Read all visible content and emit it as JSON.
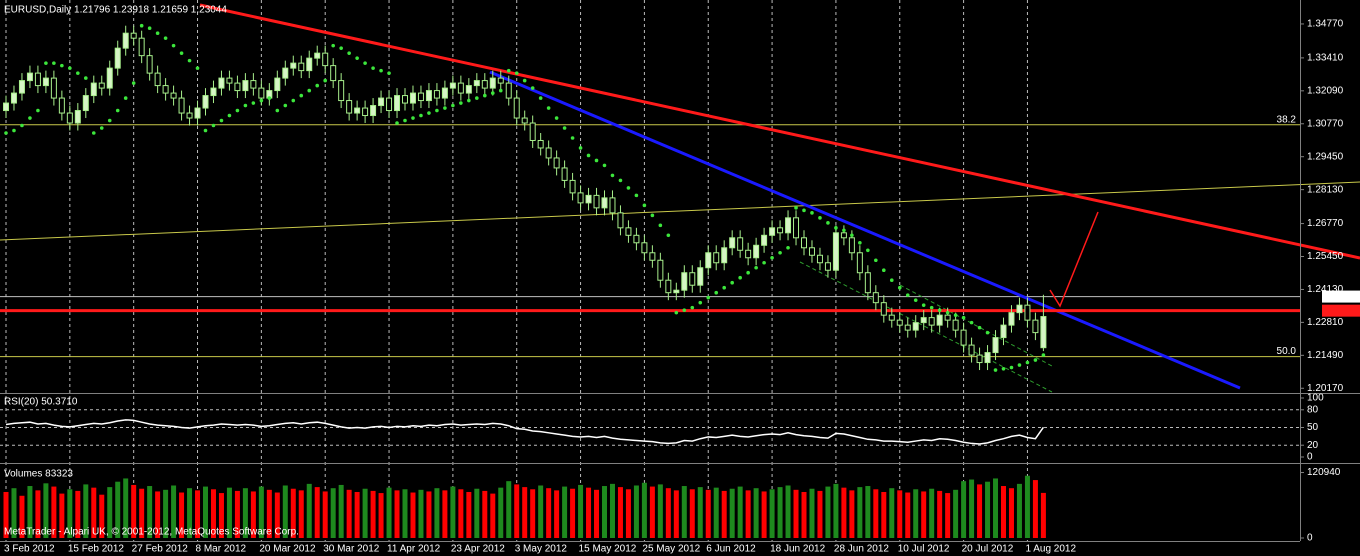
{
  "chart_data": [
    {
      "type": "candlestick",
      "title": "EURUSD,Daily  1.21796 1.23918 1.21659 1.23044",
      "categories": [
        "3 Feb 2012",
        null,
        null,
        null,
        null,
        null,
        null,
        null,
        "15 Feb 2012",
        null,
        null,
        null,
        null,
        null,
        null,
        null,
        "27 Feb 2012",
        null,
        null,
        null,
        null,
        null,
        null,
        null,
        "8 Mar 2012",
        null,
        null,
        null,
        null,
        null,
        null,
        null,
        "20 Mar 2012",
        null,
        null,
        null,
        null,
        null,
        null,
        null,
        "30 Mar 2012",
        null,
        null,
        null,
        null,
        null,
        null,
        null,
        "11 Apr 2012",
        null,
        null,
        null,
        null,
        null,
        null,
        null,
        "23 Apr 2012",
        null,
        null,
        null,
        null,
        null,
        null,
        null,
        "3 May 2012",
        null,
        null,
        null,
        null,
        null,
        null,
        null,
        "15 May 2012",
        null,
        null,
        null,
        null,
        null,
        null,
        null,
        "25 May 2012",
        null,
        null,
        null,
        null,
        null,
        null,
        null,
        "6 Jun 2012",
        null,
        null,
        null,
        null,
        null,
        null,
        null,
        "18 Jun 2012",
        null,
        null,
        null,
        null,
        null,
        null,
        null,
        "28 Jun 2012",
        null,
        null,
        null,
        null,
        null,
        null,
        null,
        "10 Jul 2012",
        null,
        null,
        null,
        null,
        null,
        null,
        null,
        "20 Jul 2012",
        null,
        null,
        null,
        null,
        null,
        null,
        null,
        "1 Aug 2012",
        null,
        null
      ],
      "open": [
        1.313,
        1.316,
        1.32,
        1.325,
        1.328,
        1.323,
        1.326,
        1.318,
        1.312,
        1.308,
        1.313,
        1.319,
        1.324,
        1.322,
        1.33,
        1.338,
        1.344,
        1.342,
        1.335,
        1.328,
        1.323,
        1.32,
        1.318,
        1.312,
        1.31,
        1.314,
        1.319,
        1.322,
        1.326,
        1.324,
        1.321,
        1.325,
        1.322,
        1.318,
        1.321,
        1.326,
        1.33,
        1.332,
        1.329,
        1.334,
        1.336,
        1.331,
        1.325,
        1.317,
        1.312,
        1.314,
        1.311,
        1.315,
        1.318,
        1.313,
        1.319,
        1.316,
        1.32,
        1.317,
        1.321,
        1.318,
        1.322,
        1.324,
        1.32,
        1.323,
        1.325,
        1.322,
        1.326,
        1.324,
        1.318,
        1.31,
        1.308,
        1.301,
        1.298,
        1.294,
        1.29,
        1.285,
        1.28,
        1.276,
        1.279,
        1.274,
        1.278,
        1.272,
        1.266,
        1.263,
        1.26,
        1.256,
        1.253,
        1.245,
        1.24,
        1.241,
        1.248,
        1.243,
        1.25,
        1.256,
        1.252,
        1.258,
        1.262,
        1.257,
        1.254,
        1.259,
        1.263,
        1.266,
        1.264,
        1.27,
        1.262,
        1.258,
        1.255,
        1.252,
        1.249,
        1.264,
        1.262,
        1.256,
        1.248,
        1.24,
        1.236,
        1.231,
        1.229,
        1.227,
        1.225,
        1.228,
        1.23,
        1.227,
        1.231,
        1.229,
        1.225,
        1.219,
        1.215,
        1.212,
        1.216,
        1.222,
        1.227,
        1.232,
        1.235,
        1.229,
        1.21796
      ],
      "high": [
        1.319,
        1.323,
        1.328,
        1.331,
        1.331,
        1.329,
        1.329,
        1.321,
        1.315,
        1.316,
        1.322,
        1.327,
        1.327,
        1.333,
        1.341,
        1.347,
        1.347,
        1.345,
        1.338,
        1.331,
        1.326,
        1.323,
        1.321,
        1.315,
        1.317,
        1.322,
        1.325,
        1.329,
        1.329,
        1.327,
        1.328,
        1.328,
        1.325,
        1.324,
        1.329,
        1.333,
        1.335,
        1.335,
        1.337,
        1.339,
        1.339,
        1.334,
        1.328,
        1.32,
        1.317,
        1.317,
        1.318,
        1.321,
        1.321,
        1.322,
        1.322,
        1.323,
        1.323,
        1.324,
        1.324,
        1.325,
        1.327,
        1.327,
        1.326,
        1.328,
        1.328,
        1.329,
        1.329,
        1.327,
        1.321,
        1.313,
        1.311,
        1.304,
        1.301,
        1.297,
        1.293,
        1.288,
        1.283,
        1.282,
        1.282,
        1.281,
        1.281,
        1.275,
        1.269,
        1.266,
        1.263,
        1.259,
        1.256,
        1.248,
        1.244,
        1.251,
        1.251,
        1.253,
        1.259,
        1.259,
        1.261,
        1.265,
        1.265,
        1.26,
        1.262,
        1.266,
        1.269,
        1.269,
        1.273,
        1.273,
        1.265,
        1.261,
        1.258,
        1.255,
        1.267,
        1.267,
        1.265,
        1.259,
        1.251,
        1.243,
        1.239,
        1.234,
        1.232,
        1.23,
        1.231,
        1.233,
        1.233,
        1.234,
        1.234,
        1.232,
        1.228,
        1.222,
        1.218,
        1.219,
        1.225,
        1.23,
        1.235,
        1.238,
        1.238,
        1.232,
        1.23918
      ],
      "low": [
        1.31,
        1.313,
        1.317,
        1.322,
        1.32,
        1.32,
        1.315,
        1.309,
        1.305,
        1.305,
        1.31,
        1.316,
        1.319,
        1.319,
        1.327,
        1.335,
        1.339,
        1.332,
        1.325,
        1.32,
        1.317,
        1.315,
        1.309,
        1.307,
        1.307,
        1.311,
        1.316,
        1.319,
        1.321,
        1.318,
        1.318,
        1.319,
        1.315,
        1.315,
        1.318,
        1.323,
        1.327,
        1.326,
        1.326,
        1.331,
        1.328,
        1.322,
        1.314,
        1.309,
        1.309,
        1.308,
        1.308,
        1.312,
        1.31,
        1.31,
        1.313,
        1.313,
        1.314,
        1.314,
        1.315,
        1.315,
        1.319,
        1.317,
        1.317,
        1.32,
        1.319,
        1.319,
        1.321,
        1.315,
        1.307,
        1.305,
        1.298,
        1.295,
        1.291,
        1.287,
        1.282,
        1.277,
        1.273,
        1.273,
        1.271,
        1.271,
        1.269,
        1.263,
        1.26,
        1.257,
        1.253,
        1.25,
        1.242,
        1.237,
        1.237,
        1.238,
        1.24,
        1.24,
        1.247,
        1.249,
        1.249,
        1.255,
        1.254,
        1.251,
        1.251,
        1.256,
        1.26,
        1.261,
        1.261,
        1.259,
        1.255,
        1.252,
        1.249,
        1.246,
        1.246,
        1.259,
        1.253,
        1.245,
        1.237,
        1.233,
        1.228,
        1.226,
        1.224,
        1.222,
        1.222,
        1.225,
        1.224,
        1.224,
        1.226,
        1.222,
        1.216,
        1.212,
        1.209,
        1.209,
        1.213,
        1.219,
        1.224,
        1.229,
        1.226,
        1.221,
        1.21659
      ],
      "close": [
        1.316,
        1.32,
        1.325,
        1.328,
        1.323,
        1.326,
        1.318,
        1.312,
        1.308,
        1.313,
        1.319,
        1.324,
        1.322,
        1.33,
        1.338,
        1.344,
        1.342,
        1.335,
        1.328,
        1.323,
        1.32,
        1.318,
        1.312,
        1.31,
        1.314,
        1.319,
        1.322,
        1.326,
        1.324,
        1.321,
        1.325,
        1.322,
        1.318,
        1.321,
        1.326,
        1.33,
        1.332,
        1.329,
        1.334,
        1.336,
        1.331,
        1.325,
        1.317,
        1.312,
        1.314,
        1.311,
        1.315,
        1.318,
        1.313,
        1.319,
        1.316,
        1.32,
        1.317,
        1.321,
        1.318,
        1.322,
        1.324,
        1.32,
        1.323,
        1.325,
        1.322,
        1.326,
        1.324,
        1.318,
        1.31,
        1.308,
        1.301,
        1.298,
        1.294,
        1.29,
        1.285,
        1.28,
        1.276,
        1.279,
        1.274,
        1.278,
        1.272,
        1.266,
        1.263,
        1.26,
        1.256,
        1.253,
        1.245,
        1.24,
        1.241,
        1.248,
        1.243,
        1.25,
        1.256,
        1.252,
        1.258,
        1.262,
        1.257,
        1.254,
        1.259,
        1.263,
        1.266,
        1.264,
        1.27,
        1.262,
        1.258,
        1.255,
        1.252,
        1.249,
        1.264,
        1.262,
        1.256,
        1.248,
        1.24,
        1.236,
        1.231,
        1.229,
        1.227,
        1.225,
        1.228,
        1.23,
        1.227,
        1.231,
        1.229,
        1.225,
        1.219,
        1.215,
        1.212,
        1.216,
        1.222,
        1.227,
        1.232,
        1.235,
        1.229,
        1.224,
        1.23044
      ],
      "sar_values": [
        1.304,
        1.305,
        1.307,
        1.31,
        1.313,
        1.332,
        1.332,
        1.331,
        1.33,
        1.328,
        1.326,
        1.304,
        1.306,
        1.309,
        1.313,
        1.318,
        1.324,
        1.347,
        1.346,
        1.344,
        1.342,
        1.339,
        1.336,
        1.333,
        1.33,
        1.305,
        1.307,
        1.309,
        1.311,
        1.313,
        1.315,
        1.316,
        1.317,
        1.318,
        1.313,
        1.315,
        1.317,
        1.319,
        1.321,
        1.323,
        1.325,
        1.339,
        1.338,
        1.336,
        1.334,
        1.332,
        1.33,
        1.329,
        1.328,
        1.308,
        1.309,
        1.31,
        1.311,
        1.312,
        1.313,
        1.314,
        1.315,
        1.316,
        1.317,
        1.318,
        1.319,
        1.32,
        1.321,
        1.329,
        1.328,
        1.325,
        1.322,
        1.318,
        1.314,
        1.31,
        1.306,
        1.302,
        1.298,
        1.295,
        1.293,
        1.291,
        1.287,
        1.285,
        1.282,
        1.279,
        1.275,
        1.271,
        1.267,
        1.263,
        1.232,
        1.233,
        1.234,
        1.236,
        1.238,
        1.24,
        1.242,
        1.244,
        1.246,
        1.248,
        1.25,
        1.252,
        1.254,
        1.256,
        1.258,
        1.274,
        1.273,
        1.272,
        1.27,
        1.268,
        1.266,
        1.265,
        1.263,
        1.26,
        1.257,
        1.253,
        1.249,
        1.245,
        1.242,
        1.239,
        1.237,
        1.235,
        1.234,
        1.233,
        1.232,
        1.231,
        1.23,
        1.228,
        1.226,
        1.224,
        1.209,
        1.2095,
        1.21,
        1.211,
        1.212,
        1.213,
        1.215
      ],
      "sar_color": "#3ce63c",
      "up_color": "#d6f5c6",
      "down_color": "#000000",
      "wick_color": "#a8f08c",
      "levels": [
        {
          "label": "38.2",
          "value": 1.3073
        },
        {
          "label": "50.0",
          "value": 1.2144
        }
      ],
      "level_color": "#c8c84a",
      "price_line": 1.23844,
      "red_line": 1.2328,
      "ylim": [
        1.2002,
        1.3565
      ],
      "yticks": [
        {
          "value": 1.2017,
          "label": "1.20170"
        },
        {
          "value": 1.2149,
          "label": "1.21490"
        },
        {
          "value": 1.2281,
          "label": "1.22810"
        },
        {
          "value": 1.2413,
          "label": "1.24130"
        },
        {
          "value": 1.2545,
          "label": "1.25450"
        },
        {
          "value": 1.2677,
          "label": "1.26770"
        },
        {
          "value": 1.2813,
          "label": "1.28130"
        },
        {
          "value": 1.2945,
          "label": "1.29450"
        },
        {
          "value": 1.3077,
          "label": "1.30770"
        },
        {
          "value": 1.3209,
          "label": "1.32090"
        },
        {
          "value": 1.3341,
          "label": "1.33410"
        },
        {
          "value": 1.3477,
          "label": "1.34770"
        }
      ],
      "xgrid": true
    },
    {
      "type": "line",
      "title": "RSI(20) 50.3710",
      "color": "#ffffff",
      "values": [
        55,
        57,
        58,
        59,
        56,
        57,
        54,
        52,
        51,
        53,
        55,
        57,
        56,
        58,
        61,
        63,
        62,
        59,
        56,
        54,
        53,
        52,
        50,
        49,
        51,
        53,
        54,
        56,
        55,
        54,
        55,
        54,
        52,
        53,
        55,
        57,
        58,
        56,
        58,
        59,
        57,
        54,
        51,
        49,
        50,
        49,
        51,
        52,
        50,
        52,
        51,
        53,
        52,
        54,
        53,
        55,
        56,
        54,
        55,
        56,
        55,
        57,
        56,
        53,
        48,
        47,
        44,
        43,
        41,
        39,
        37,
        35,
        34,
        35,
        33,
        35,
        32,
        30,
        29,
        28,
        27,
        26,
        24,
        23,
        24,
        28,
        27,
        31,
        34,
        33,
        35,
        37,
        35,
        34,
        36,
        38,
        39,
        38,
        41,
        38,
        36,
        35,
        33,
        32,
        40,
        39,
        36,
        33,
        30,
        29,
        27,
        27,
        26,
        25,
        27,
        29,
        28,
        31,
        30,
        28,
        25,
        23,
        22,
        24,
        28,
        31,
        35,
        37,
        33,
        31,
        50.371
      ],
      "ylim": [
        0,
        100
      ],
      "yticks": [
        0,
        20,
        50,
        80,
        100
      ],
      "grid": true
    },
    {
      "type": "bar",
      "title": "Volumes 83323",
      "up_color": "#1e8a1e",
      "down_color": "#ff0000",
      "values": [
        85000,
        92000,
        78000,
        96000,
        88000,
        101000,
        95000,
        82000,
        90000,
        87000,
        99000,
        93000,
        80000,
        94000,
        104000,
        110000,
        98000,
        91000,
        96000,
        86000,
        89000,
        97000,
        84000,
        92000,
        88000,
        95000,
        90000,
        83000,
        93000,
        87000,
        92000,
        86000,
        95000,
        89000,
        84000,
        97000,
        91000,
        88000,
        100000,
        94000,
        86000,
        92000,
        98000,
        89000,
        85000,
        91000,
        87000,
        83000,
        93000,
        88000,
        90000,
        84000,
        89000,
        86000,
        92000,
        88000,
        95000,
        90000,
        85000,
        91000,
        87000,
        82000,
        93000,
        105000,
        99000,
        94000,
        90000,
        97000,
        92000,
        88000,
        95000,
        91000,
        98000,
        93000,
        89000,
        96000,
        100000,
        94000,
        90000,
        97000,
        102000,
        95000,
        99000,
        92000,
        88000,
        96000,
        90000,
        94000,
        89000,
        93000,
        87000,
        91000,
        95000,
        88000,
        92000,
        86000,
        90000,
        94000,
        97000,
        89000,
        85000,
        91000,
        87000,
        95000,
        100000,
        93000,
        88000,
        94000,
        96000,
        90000,
        85000,
        92000,
        88000,
        84000,
        90000,
        86000,
        91000,
        87000,
        83000,
        89000,
        105000,
        108000,
        99000,
        104000,
        110000,
        96000,
        92000,
        100000,
        115000,
        107000,
        83323
      ],
      "ylim": [
        0,
        133000
      ],
      "yticks": [
        0,
        120940
      ]
    }
  ],
  "footer": "MetaTrader - Alpari UK, © 2001-2012, MetaQuotes Software Corp."
}
